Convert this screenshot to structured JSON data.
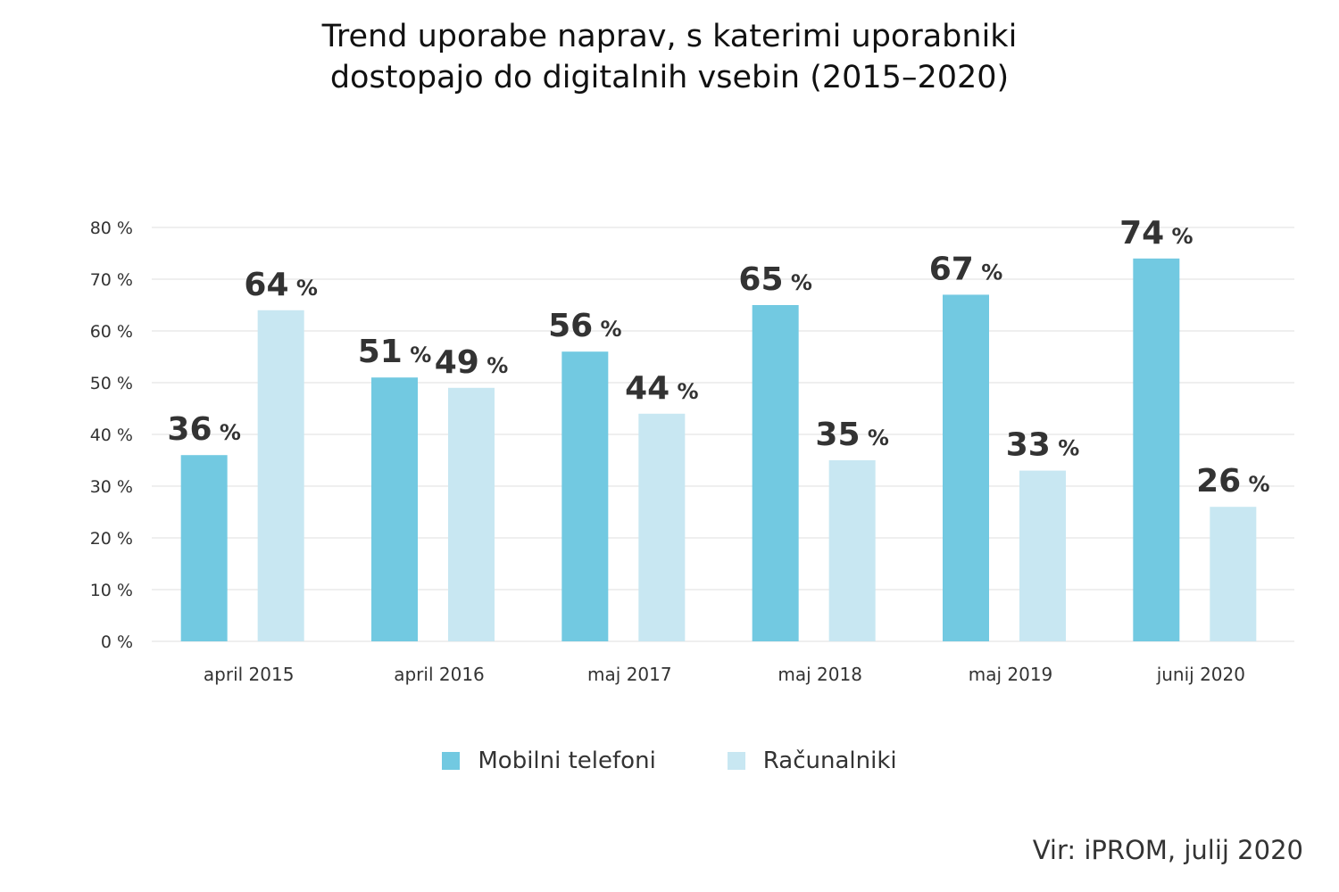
{
  "chart_data": {
    "type": "bar",
    "title": [
      "Trend uporabe naprav, s katerimi uporabniki",
      "dostopajo do digitalnih vsebin (2015–2020)"
    ],
    "categories": [
      "april 2015",
      "april 2016",
      "maj 2017",
      "maj 2018",
      "maj 2019",
      "junij 2020"
    ],
    "series": [
      {
        "name": "Mobilni telefoni",
        "values": [
          36,
          51,
          56,
          65,
          67,
          74
        ],
        "color": "#72c9e1"
      },
      {
        "name": "Računalniki",
        "values": [
          64,
          49,
          44,
          35,
          33,
          26
        ],
        "color": "#c8e7f2"
      }
    ],
    "value_suffix": "%",
    "ylim": [
      0,
      80
    ],
    "yticks": [
      "0 %",
      "10 %",
      "20 %",
      "30 %",
      "40 %",
      "50 %",
      "60 %",
      "70 %",
      "80 %"
    ],
    "grid": true,
    "legend": "bottom",
    "source": "Vir: iPROM, julij 2020"
  }
}
